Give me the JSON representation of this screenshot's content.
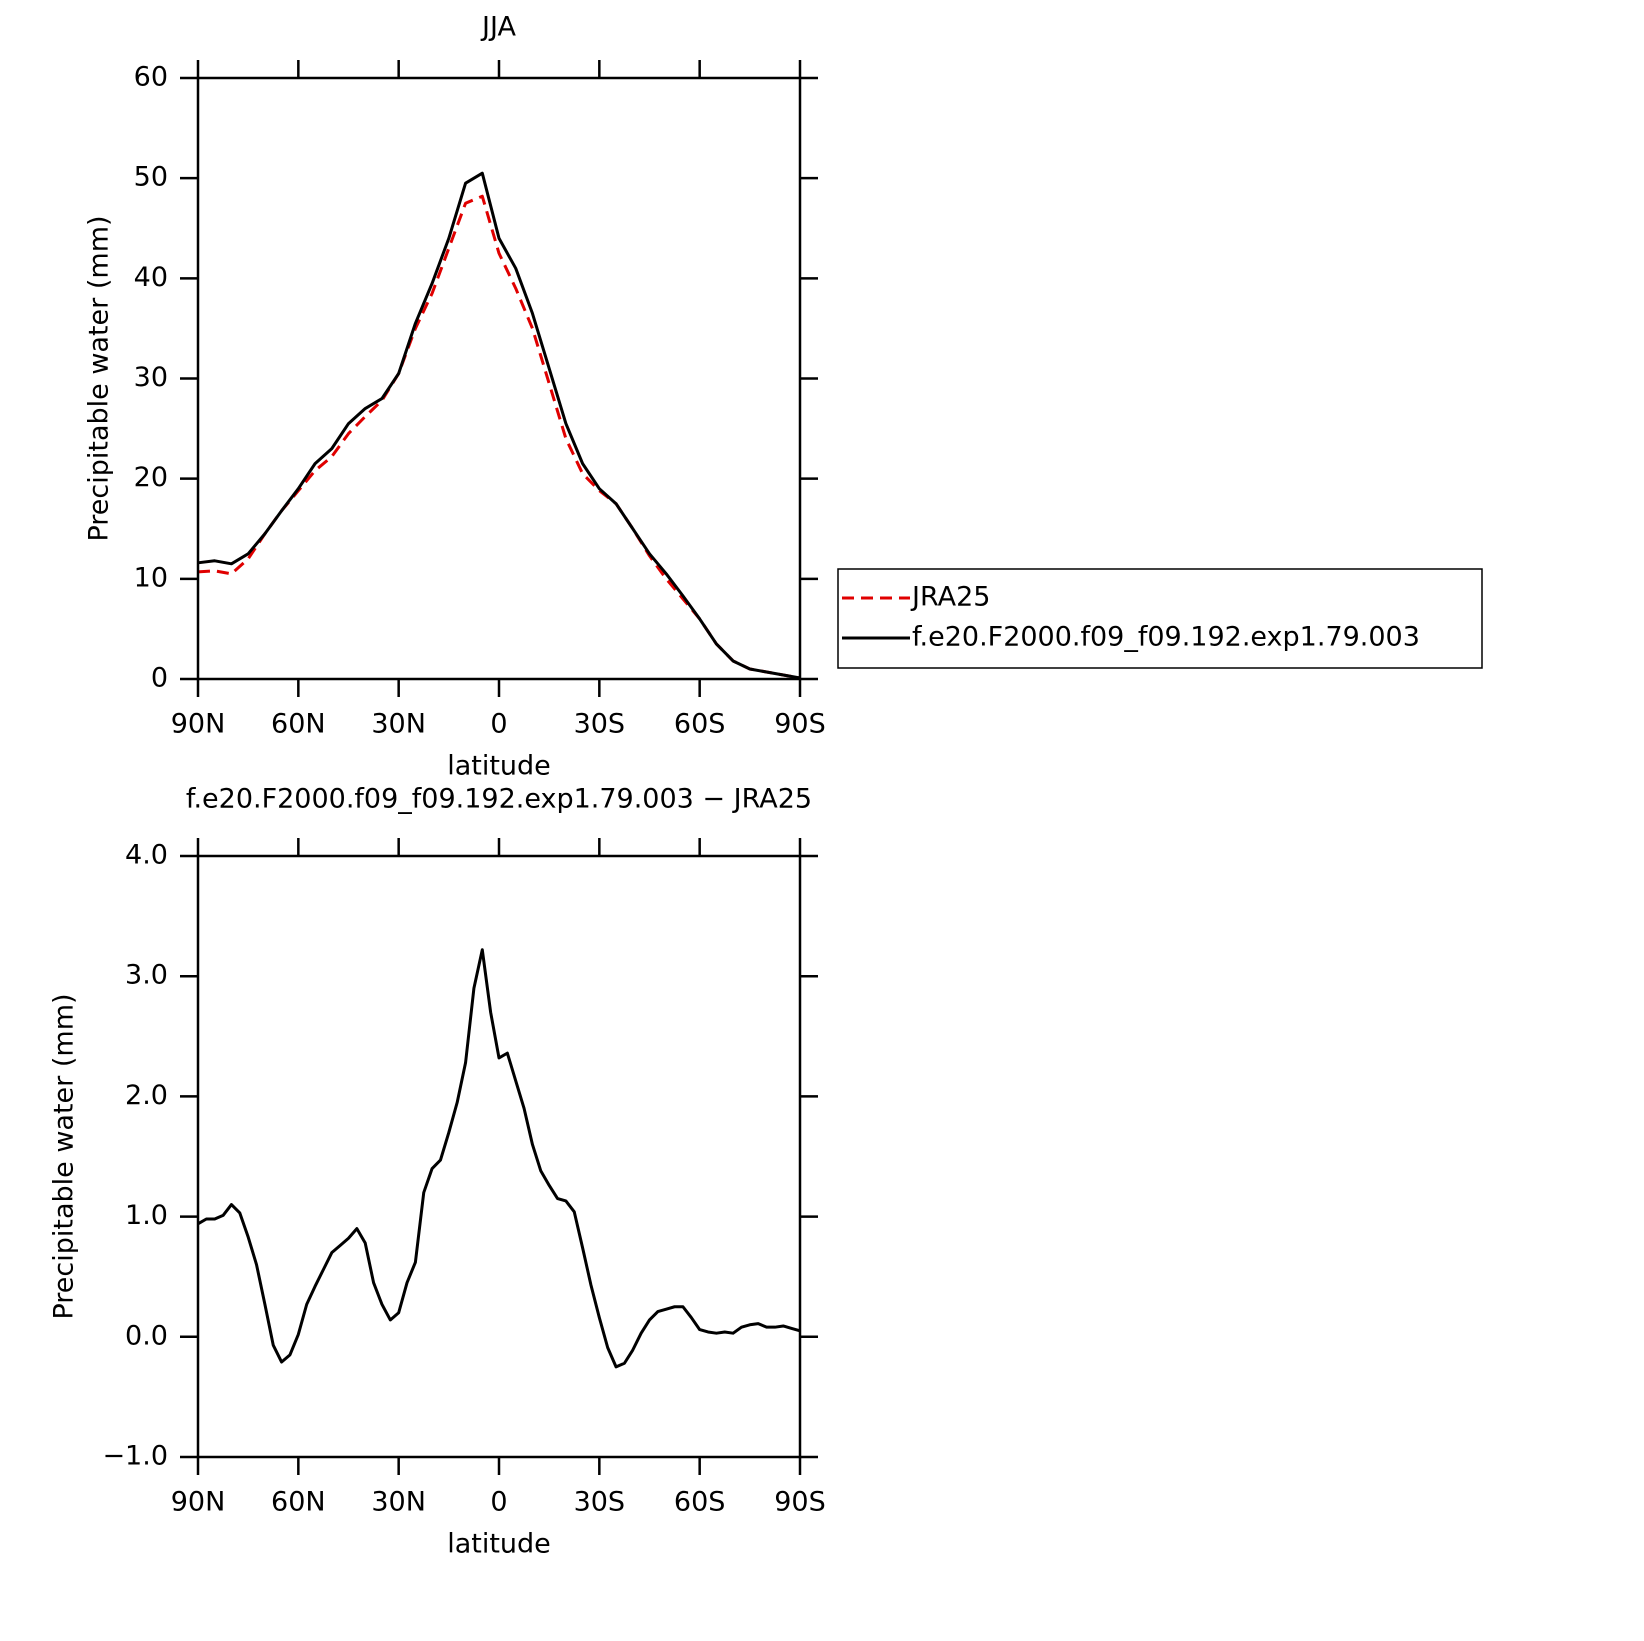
{
  "chart_data": [
    {
      "type": "line",
      "title": "JJA",
      "x_label": "latitude",
      "y_label": "Precipitable water (mm)",
      "x": [
        90,
        85,
        80,
        75,
        70,
        65,
        60,
        55,
        50,
        45,
        40,
        35,
        30,
        25,
        20,
        15,
        10,
        5,
        0,
        -5,
        -10,
        -15,
        -20,
        -25,
        -30,
        -35,
        -40,
        -45,
        -50,
        -55,
        -60,
        -65,
        -70,
        -75,
        -80,
        -85,
        -90
      ],
      "xlim": [
        90,
        -90
      ],
      "xticks": [
        {
          "value": 90,
          "label": "90N"
        },
        {
          "value": 60,
          "label": "60N"
        },
        {
          "value": 30,
          "label": "30N"
        },
        0,
        {
          "value": -30,
          "label": "30S"
        },
        {
          "value": -60,
          "label": "60S"
        },
        {
          "value": -90,
          "label": "90S"
        }
      ],
      "ylim": [
        0,
        60
      ],
      "yticks": [
        0,
        10,
        20,
        30,
        40,
        50,
        60
      ],
      "legend": "right",
      "series": [
        {
          "name": "JRA25",
          "color": "#e00000",
          "style": "dashed",
          "values": [
            10.7,
            10.8,
            10.5,
            12,
            14.5,
            16.8,
            18.8,
            20.8,
            22.2,
            24.5,
            26.2,
            27.8,
            30.5,
            35,
            38.5,
            43,
            47.5,
            48.2,
            42.5,
            39,
            35,
            29.5,
            24,
            20.5,
            18.8,
            17.5,
            15,
            12.3,
            10,
            8,
            6,
            3.5,
            1.8,
            1,
            0.7,
            0.4,
            0.1
          ]
        },
        {
          "name": "f.e20.F2000.f09_f09.192.exp1.79.003",
          "color": "#000000",
          "style": "solid",
          "values": [
            11.6,
            11.8,
            11.5,
            12.5,
            14.5,
            16.8,
            19,
            21.5,
            23,
            25.5,
            27,
            28,
            30.5,
            35.5,
            39.5,
            44,
            49.5,
            50.5,
            44,
            41,
            36.5,
            31,
            25.5,
            21.5,
            19,
            17.5,
            15,
            12.5,
            10.5,
            8.3,
            6,
            3.5,
            1.8,
            1,
            0.7,
            0.4,
            0.1
          ]
        }
      ]
    },
    {
      "type": "line",
      "title": "f.e20.F2000.f09_f09.192.exp1.79.003 − JRA25",
      "x_label": "latitude",
      "y_label": "Precipitable water (mm)",
      "x": [
        90,
        87.5,
        85,
        82.5,
        80,
        77.5,
        75,
        72.5,
        70,
        67.5,
        65,
        62.5,
        60,
        57.5,
        55,
        52.5,
        50,
        47.5,
        45,
        42.5,
        40,
        37.5,
        35,
        32.5,
        30,
        27.5,
        25,
        22.5,
        20,
        17.5,
        15,
        12.5,
        10,
        7.5,
        5,
        2.5,
        0,
        -2.5,
        -5,
        -7.5,
        -10,
        -12.5,
        -15,
        -17.5,
        -20,
        -22.5,
        -25,
        -27.5,
        -30,
        -32.5,
        -35,
        -37.5,
        -40,
        -42.5,
        -45,
        -47.5,
        -50,
        -52.5,
        -55,
        -57.5,
        -60,
        -62.5,
        -65,
        -67.5,
        -70,
        -72.5,
        -75,
        -77.5,
        -80,
        -82.5,
        -85,
        -87.5,
        -90
      ],
      "xlim": [
        90,
        -90
      ],
      "xticks": [
        {
          "value": 90,
          "label": "90N"
        },
        {
          "value": 60,
          "label": "60N"
        },
        {
          "value": 30,
          "label": "30N"
        },
        0,
        {
          "value": -30,
          "label": "30S"
        },
        {
          "value": -60,
          "label": "60S"
        },
        {
          "value": -90,
          "label": "90S"
        }
      ],
      "ylim": [
        -1,
        4
      ],
      "yticks": [
        {
          "value": -1,
          "label": "−1.0"
        },
        {
          "value": 0,
          "label": "0.0"
        },
        {
          "value": 1,
          "label": "1.0"
        },
        {
          "value": 2,
          "label": "2.0"
        },
        {
          "value": 3,
          "label": "3.0"
        },
        {
          "value": 4,
          "label": "4.0"
        }
      ],
      "color": "#000000",
      "values": [
        0.94,
        0.98,
        0.98,
        1.01,
        1.1,
        1.03,
        0.83,
        0.6,
        0.27,
        -0.07,
        -0.21,
        -0.15,
        0.02,
        0.27,
        0.42,
        0.56,
        0.7,
        0.76,
        0.82,
        0.9,
        0.78,
        0.45,
        0.27,
        0.14,
        0.2,
        0.45,
        0.62,
        1.2,
        1.4,
        1.47,
        1.7,
        1.95,
        2.28,
        2.9,
        3.22,
        2.7,
        2.32,
        2.36,
        2.13,
        1.9,
        1.6,
        1.38,
        1.26,
        1.15,
        1.13,
        1.04,
        0.74,
        0.43,
        0.16,
        -0.09,
        -0.25,
        -0.22,
        -0.11,
        0.03,
        0.14,
        0.21,
        0.23,
        0.25,
        0.25,
        0.16,
        0.06,
        0.04,
        0.03,
        0.04,
        0.03,
        0.08,
        0.1,
        0.11,
        0.08,
        0.08,
        0.09,
        0.07,
        0.05
      ]
    }
  ]
}
